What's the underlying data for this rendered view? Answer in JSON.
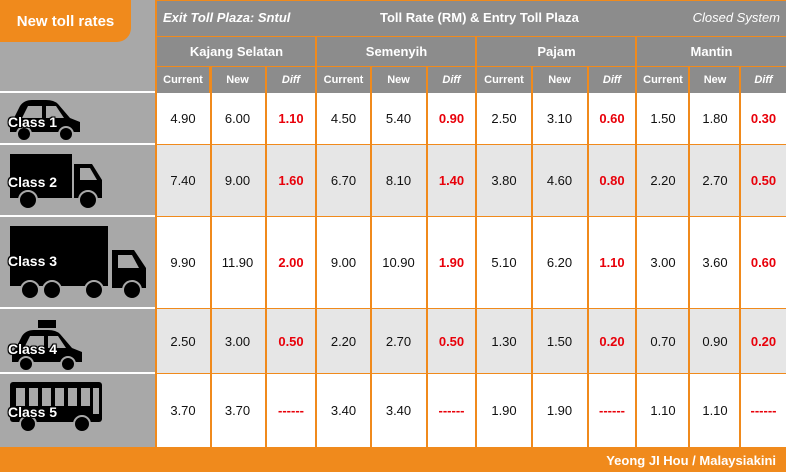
{
  "title": "New toll rates",
  "header": {
    "exit_plaza": "Exit Toll Plaza: Sntul",
    "toll_rate": "Toll Rate (RM) & Entry Toll Plaza",
    "system": "Closed System"
  },
  "plazas": [
    "Kajang Selatan",
    "Semenyih",
    "Pajam",
    "Mantin"
  ],
  "sub_headers": {
    "current": "Current",
    "new": "New",
    "diff": "Diff"
  },
  "rows": [
    {
      "label": "Class 1",
      "icon": "car-icon",
      "values": [
        [
          "4.90",
          "6.00",
          "1.10"
        ],
        [
          "4.50",
          "5.40",
          "0.90"
        ],
        [
          "2.50",
          "3.10",
          "0.60"
        ],
        [
          "1.50",
          "1.80",
          "0.30"
        ]
      ]
    },
    {
      "label": "Class 2",
      "icon": "lorry-icon",
      "values": [
        [
          "7.40",
          "9.00",
          "1.60"
        ],
        [
          "6.70",
          "8.10",
          "1.40"
        ],
        [
          "3.80",
          "4.60",
          "0.80"
        ],
        [
          "2.20",
          "2.70",
          "0.50"
        ]
      ]
    },
    {
      "label": "Class 3",
      "icon": "truck-icon",
      "values": [
        [
          "9.90",
          "11.90",
          "2.00"
        ],
        [
          "9.00",
          "10.90",
          "1.90"
        ],
        [
          "5.10",
          "6.20",
          "1.10"
        ],
        [
          "3.00",
          "3.60",
          "0.60"
        ]
      ]
    },
    {
      "label": "Class 4",
      "icon": "taxi-icon",
      "values": [
        [
          "2.50",
          "3.00",
          "0.50"
        ],
        [
          "2.20",
          "2.70",
          "0.50"
        ],
        [
          "1.30",
          "1.50",
          "0.20"
        ],
        [
          "0.70",
          "0.90",
          "0.20"
        ]
      ]
    },
    {
      "label": "Class 5",
      "icon": "bus-icon",
      "values": [
        [
          "3.70",
          "3.70",
          "------"
        ],
        [
          "3.40",
          "3.40",
          "------"
        ],
        [
          "1.90",
          "1.90",
          "------"
        ],
        [
          "1.10",
          "1.10",
          "------"
        ]
      ]
    }
  ],
  "credit": "Yeong JI Hou / Malaysiakini",
  "colors": {
    "accent": "#f08a1c",
    "header_grey": "#8c8c8c",
    "diff_red": "#e8000a",
    "row_alt": "#e6e6e6"
  }
}
